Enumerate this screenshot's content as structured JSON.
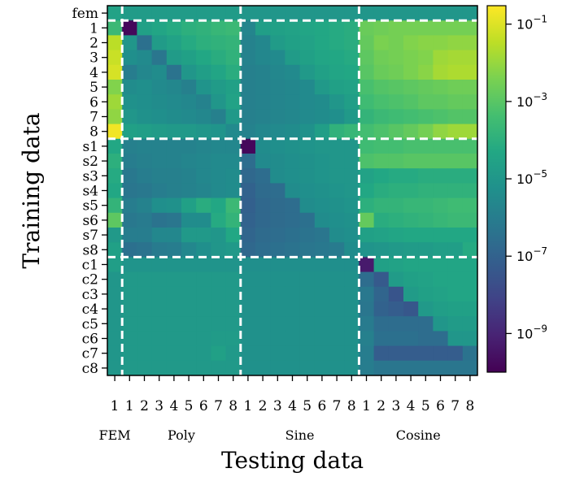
{
  "chart_data": {
    "type": "heatmap",
    "xlabel": "Testing data",
    "ylabel": "Training data",
    "x_tick_labels": [
      "1",
      "1",
      "2",
      "3",
      "4",
      "5",
      "6",
      "7",
      "8",
      "1",
      "2",
      "3",
      "4",
      "5",
      "6",
      "7",
      "8",
      "1",
      "2",
      "3",
      "4",
      "5",
      "6",
      "7",
      "8"
    ],
    "x_group_labels": [
      "FEM",
      "Poly",
      "Sine",
      "Cosine"
    ],
    "y_tick_labels": [
      "fem",
      "1",
      "2",
      "3",
      "4",
      "5",
      "6",
      "7",
      "8",
      "s1",
      "s2",
      "s3",
      "s4",
      "s5",
      "s6",
      "s7",
      "s8",
      "c1",
      "c2",
      "c3",
      "c4",
      "c5",
      "c6",
      "c7",
      "c8"
    ],
    "colorbar": {
      "scale": "log",
      "range": [
        1e-10,
        0.3
      ],
      "tick_labels": [
        "10^-1",
        "10^-3",
        "10^-5",
        "10^-7",
        "10^-9"
      ]
    },
    "colormap": "viridis",
    "log10_values": [
      [
        -4.5,
        -4.8,
        -4.8,
        -4.8,
        -4.8,
        -4.8,
        -4.8,
        -4.8,
        -4.8,
        -5.0,
        -5.0,
        -5.0,
        -5.0,
        -5.0,
        -5.0,
        -5.0,
        -5.0,
        -5.0,
        -5.0,
        -5.0,
        -5.0,
        -5.0,
        -5.0,
        -5.0,
        -5.0
      ],
      [
        -3.6,
        -9.8,
        -4.6,
        -4.4,
        -4.2,
        -4.0,
        -3.9,
        -3.7,
        -3.6,
        -5.7,
        -4.7,
        -4.6,
        -4.5,
        -4.4,
        -4.3,
        -4.2,
        -4.1,
        -2.7,
        -2.6,
        -2.5,
        -2.5,
        -2.5,
        -2.5,
        -2.5,
        -2.5
      ],
      [
        -1.5,
        -5.0,
        -6.5,
        -4.8,
        -4.5,
        -4.2,
        -4.0,
        -3.9,
        -3.8,
        -5.8,
        -5.6,
        -4.8,
        -4.6,
        -4.5,
        -4.3,
        -4.2,
        -4.1,
        -2.8,
        -2.4,
        -2.5,
        -2.3,
        -2.2,
        -2.2,
        -2.1,
        -2.1
      ],
      [
        -1.3,
        -5.3,
        -5.5,
        -6.3,
        -4.8,
        -4.6,
        -4.3,
        -4.1,
        -3.9,
        -5.8,
        -5.6,
        -5.5,
        -4.8,
        -4.6,
        -4.4,
        -4.3,
        -4.2,
        -2.9,
        -2.6,
        -2.5,
        -2.4,
        -2.3,
        -1.9,
        -1.8,
        -1.8
      ],
      [
        -1.1,
        -6.0,
        -5.6,
        -5.4,
        -6.4,
        -5.0,
        -4.7,
        -4.4,
        -4.1,
        -5.9,
        -5.8,
        -5.6,
        -5.5,
        -4.9,
        -4.6,
        -4.4,
        -4.3,
        -3.0,
        -2.7,
        -2.6,
        -2.4,
        -2.2,
        -1.8,
        -1.7,
        -1.7
      ],
      [
        -2.3,
        -5.4,
        -5.3,
        -5.5,
        -5.6,
        -5.9,
        -5.1,
        -4.8,
        -4.6,
        -5.9,
        -5.8,
        -5.7,
        -5.6,
        -5.5,
        -4.9,
        -4.6,
        -4.5,
        -3.3,
        -3.1,
        -3.0,
        -2.9,
        -2.8,
        -2.7,
        -2.6,
        -2.6
      ],
      [
        -1.9,
        -5.2,
        -5.3,
        -5.4,
        -5.5,
        -5.6,
        -5.8,
        -5.0,
        -4.5,
        -5.9,
        -5.8,
        -5.7,
        -5.6,
        -5.5,
        -5.4,
        -5.0,
        -4.7,
        -3.5,
        -3.3,
        -3.2,
        -3.1,
        -2.9,
        -2.9,
        -2.8,
        -2.8
      ],
      [
        -2.1,
        -5.0,
        -5.2,
        -5.3,
        -5.4,
        -5.5,
        -5.6,
        -5.9,
        -4.9,
        -5.9,
        -5.8,
        -5.7,
        -5.6,
        -5.5,
        -5.4,
        -5.3,
        -4.9,
        -3.8,
        -3.6,
        -3.5,
        -3.4,
        -3.3,
        -3.2,
        -3.1,
        -3.1
      ],
      [
        -0.7,
        -4.6,
        -4.7,
        -4.8,
        -4.9,
        -4.9,
        -5.0,
        -5.1,
        -5.5,
        -5.8,
        -5.6,
        -5.5,
        -5.4,
        -5.2,
        -4.7,
        -3.9,
        -3.7,
        -3.4,
        -3.2,
        -3.0,
        -2.8,
        -2.5,
        -2.1,
        -1.9,
        -1.9
      ],
      [
        -4.3,
        -5.9,
        -5.8,
        -5.8,
        -5.8,
        -5.8,
        -5.7,
        -5.6,
        -5.6,
        -9.8,
        -5.4,
        -5.3,
        -5.2,
        -5.1,
        -5.0,
        -5.0,
        -5.0,
        -3.5,
        -3.4,
        -3.4,
        -3.3,
        -3.3,
        -3.3,
        -3.3,
        -3.3
      ],
      [
        -4.0,
        -6.0,
        -5.9,
        -5.8,
        -5.8,
        -5.7,
        -5.6,
        -5.5,
        -5.5,
        -6.6,
        -5.5,
        -5.4,
        -5.3,
        -5.2,
        -5.1,
        -5.0,
        -5.0,
        -3.2,
        -3.1,
        -3.1,
        -3.0,
        -3.0,
        -3.0,
        -3.0,
        -3.0
      ],
      [
        -4.2,
        -6.2,
        -6.0,
        -5.9,
        -5.9,
        -5.8,
        -5.6,
        -5.5,
        -5.4,
        -6.8,
        -6.6,
        -5.4,
        -5.3,
        -5.2,
        -5.1,
        -5.0,
        -5.0,
        -4.5,
        -4.3,
        -4.2,
        -4.2,
        -4.1,
        -4.1,
        -4.1,
        -4.1
      ],
      [
        -4.3,
        -6.3,
        -6.2,
        -6.0,
        -5.9,
        -5.8,
        -5.7,
        -5.5,
        -5.4,
        -7.0,
        -6.7,
        -6.6,
        -5.4,
        -5.3,
        -5.2,
        -5.1,
        -5.0,
        -4.3,
        -4.1,
        -4.0,
        -4.0,
        -3.9,
        -3.9,
        -3.9,
        -3.9
      ],
      [
        -3.8,
        -6.0,
        -5.8,
        -5.3,
        -5.2,
        -4.6,
        -4.1,
        -4.3,
        -3.6,
        -7.1,
        -6.8,
        -6.7,
        -6.6,
        -5.4,
        -5.3,
        -5.2,
        -5.1,
        -4.0,
        -3.8,
        -3.8,
        -3.7,
        -3.7,
        -3.6,
        -3.5,
        -3.5
      ],
      [
        -2.9,
        -6.2,
        -6.1,
        -6.4,
        -6.3,
        -5.4,
        -5.4,
        -4.2,
        -3.8,
        -7.0,
        -6.8,
        -6.7,
        -6.6,
        -6.5,
        -5.4,
        -5.3,
        -5.2,
        -2.8,
        -4.1,
        -4.0,
        -3.9,
        -3.8,
        -3.7,
        -3.6,
        -3.6
      ],
      [
        -4.9,
        -6.0,
        -6.0,
        -5.6,
        -5.6,
        -4.9,
        -4.9,
        -5.0,
        -4.3,
        -6.9,
        -6.7,
        -6.6,
        -6.5,
        -6.4,
        -6.3,
        -5.4,
        -5.3,
        -4.6,
        -4.5,
        -4.4,
        -4.3,
        -4.3,
        -4.3,
        -4.3,
        -4.3
      ],
      [
        -4.6,
        -6.5,
        -6.4,
        -6.1,
        -6.0,
        -5.6,
        -5.3,
        -5.0,
        -4.9,
        -6.8,
        -6.6,
        -6.5,
        -6.4,
        -6.3,
        -6.2,
        -6.1,
        -5.4,
        -5.1,
        -5.0,
        -4.9,
        -4.8,
        -4.8,
        -4.7,
        -4.7,
        -4.2
      ],
      [
        -4.7,
        -5.1,
        -5.1,
        -5.1,
        -5.1,
        -5.1,
        -5.1,
        -5.1,
        -5.1,
        -5.3,
        -5.3,
        -5.3,
        -5.3,
        -5.3,
        -5.3,
        -5.3,
        -5.3,
        -9.3,
        -4.6,
        -4.5,
        -4.4,
        -4.4,
        -4.4,
        -4.4,
        -4.4
      ],
      [
        -5.0,
        -4.9,
        -4.9,
        -4.9,
        -4.9,
        -4.9,
        -4.9,
        -4.9,
        -4.9,
        -5.2,
        -5.2,
        -5.2,
        -5.2,
        -5.2,
        -5.2,
        -5.2,
        -5.2,
        -6.6,
        -7.3,
        -4.8,
        -4.6,
        -4.5,
        -4.4,
        -4.4,
        -4.4
      ],
      [
        -5.0,
        -4.9,
        -4.9,
        -4.9,
        -4.9,
        -4.9,
        -4.9,
        -4.9,
        -4.9,
        -5.2,
        -5.2,
        -5.2,
        -5.2,
        -5.2,
        -5.2,
        -5.2,
        -5.2,
        -6.2,
        -6.9,
        -7.5,
        -4.8,
        -4.6,
        -4.5,
        -4.4,
        -4.4
      ],
      [
        -5.0,
        -4.9,
        -4.9,
        -4.9,
        -4.9,
        -4.9,
        -4.9,
        -4.9,
        -4.9,
        -5.2,
        -5.2,
        -5.2,
        -5.2,
        -5.2,
        -5.2,
        -5.2,
        -5.2,
        -6.3,
        -7.0,
        -7.2,
        -7.4,
        -4.9,
        -4.7,
        -4.6,
        -4.6
      ],
      [
        -5.0,
        -4.9,
        -4.9,
        -4.9,
        -4.9,
        -4.9,
        -4.9,
        -4.9,
        -4.9,
        -5.2,
        -5.2,
        -5.2,
        -5.2,
        -5.2,
        -5.2,
        -5.2,
        -5.2,
        -6.1,
        -6.6,
        -6.6,
        -6.6,
        -6.6,
        -5.0,
        -4.8,
        -4.8
      ],
      [
        -5.0,
        -4.9,
        -4.9,
        -4.9,
        -4.9,
        -4.9,
        -4.9,
        -4.8,
        -4.8,
        -5.2,
        -5.2,
        -5.2,
        -5.2,
        -5.2,
        -5.2,
        -5.2,
        -5.2,
        -5.9,
        -6.5,
        -6.5,
        -6.5,
        -6.6,
        -6.6,
        -5.0,
        -5.0
      ],
      [
        -5.0,
        -4.9,
        -4.9,
        -4.9,
        -4.9,
        -4.9,
        -4.9,
        -4.6,
        -4.9,
        -5.2,
        -5.2,
        -5.2,
        -5.2,
        -5.2,
        -5.2,
        -5.2,
        -5.2,
        -6.0,
        -7.2,
        -7.2,
        -7.2,
        -7.2,
        -7.2,
        -7.2,
        -6.4
      ],
      [
        -5.0,
        -4.9,
        -4.9,
        -4.9,
        -4.9,
        -4.9,
        -4.9,
        -4.9,
        -4.9,
        -5.2,
        -5.2,
        -5.2,
        -5.2,
        -5.2,
        -5.2,
        -5.2,
        -5.2,
        -6.0,
        -6.3,
        -6.3,
        -6.3,
        -6.3,
        -6.3,
        -6.3,
        -6.3
      ]
    ]
  }
}
